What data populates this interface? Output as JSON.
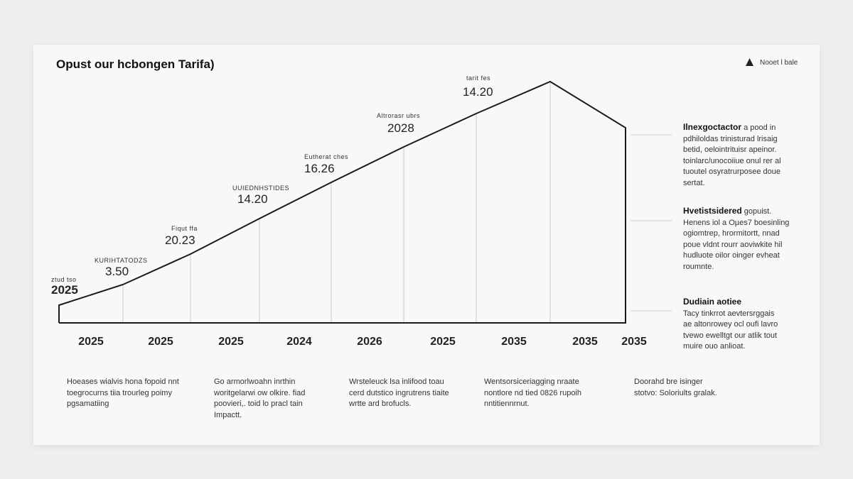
{
  "header": {
    "title": "Opust our hcbongen Tarifa)",
    "legend": "Nooet l bale"
  },
  "annotations": [
    {
      "caption": "ztud tso",
      "value": "2025"
    },
    {
      "caption": "KURIHTATODZS",
      "value": "3.50"
    },
    {
      "caption": "Fiqut ffa",
      "value": "20.23"
    },
    {
      "caption": "UUIEDNHSTIDES",
      "value": "14.20"
    },
    {
      "caption": "Eutherat ches",
      "value": "16.26"
    },
    {
      "caption": "Altrorasr ubrs",
      "value": "2028"
    },
    {
      "caption": "tarit fes",
      "value": "14.20"
    }
  ],
  "x_labels": [
    "2025",
    "2025",
    "2025",
    "2024",
    "2026",
    "2025",
    "2035",
    "2035",
    "2035"
  ],
  "side_notes": [
    {
      "heading": "Ilnexgoctactor",
      "lead": "a pood in",
      "lines": [
        "pdhiloldas trinisturad lrisaig",
        "betid, oelointrituisr apeinor.",
        "toinlarc/unocoiiue onul rer al",
        "tuoutel osyratrurposee doue",
        "sertat."
      ]
    },
    {
      "heading": "Hvetistsidered",
      "lead": "gopuist.",
      "lines": [
        "Henens iol a Oµes7 boesinling",
        "ogiomtrep, hrormitortt, nnad",
        "poue vldnt rourr aoviwkite hil",
        "hudluote oilor oinger evheat",
        "roumnte."
      ]
    },
    {
      "heading": "Dudiain aotiee",
      "lead": "",
      "lines": [
        "Tacy tinkrrot aevtersrggais",
        "ae altonrowey ocl oufi lavro",
        "tvewo ewelltgt our atlik tout",
        "muire ouo anlioat."
      ]
    }
  ],
  "footer_notes": [
    [
      "Hoeases wialvis hona fopoid nnt",
      "toegrocurns tiia trourleg poimy",
      "pgsamatiing"
    ],
    [
      "Go armorlwoahn inrthin",
      "woritgelarwi ow olkire. fiad",
      "poovieri,. toid lo pracl tain",
      "Impactt."
    ],
    [
      "Wrsteleuck lsa inlifood toau",
      "cerd dutstico ingrutrens tiaite",
      "wrtte ard brofucls."
    ],
    [
      "Wentsorsiceriagging nraate",
      "nontlore nd tied 0826 rupoih",
      "nntitiennrnut."
    ],
    [
      "Doorahd bre isinger",
      "stotvo: Soloriults gralak."
    ]
  ]
}
